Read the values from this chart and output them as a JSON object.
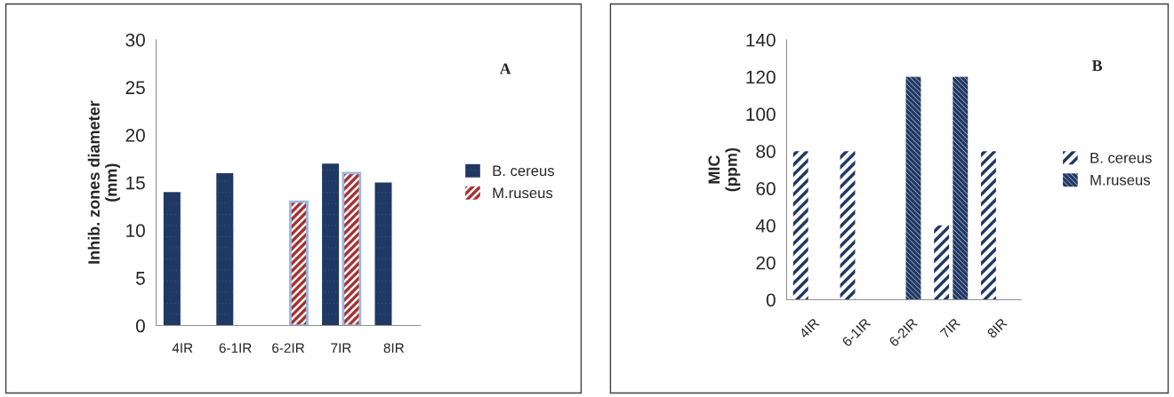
{
  "chart_data": [
    {
      "type": "bar",
      "ylabel": "Inhib. zones diameter\n(mm)",
      "categories": [
        "4IR",
        "6-1IR",
        "6-2IR",
        "7IR",
        "8IR"
      ],
      "series": [
        {
          "name": "B. cereus",
          "color": "#1f3864",
          "values": [
            14,
            16,
            null,
            17,
            15
          ]
        },
        {
          "name": "M.ruseus",
          "color": "#a83232",
          "values": [
            null,
            null,
            13,
            16,
            null
          ]
        }
      ],
      "ylim": [
        0,
        30
      ],
      "yticks": [
        0,
        5,
        10,
        15,
        20,
        25,
        30
      ],
      "legend": "right",
      "grid": false,
      "annotations": [
        "A"
      ]
    },
    {
      "type": "bar",
      "ylabel": "MIC\n(ppm)",
      "categories": [
        "4IR",
        "6-1IR",
        "6-2IR",
        "7IR",
        "8IR"
      ],
      "series": [
        {
          "name": "B. cereus",
          "color": "#1f3864",
          "values": [
            80,
            80,
            null,
            40,
            80
          ]
        },
        {
          "name": "M.ruseus",
          "color": "#1f3864",
          "values": [
            null,
            null,
            120,
            120,
            null
          ]
        }
      ],
      "ylim": [
        0,
        140
      ],
      "yticks": [
        0,
        20,
        40,
        60,
        80,
        100,
        120,
        140
      ],
      "legend": "right",
      "grid": false,
      "annotations": [
        "B"
      ]
    }
  ]
}
